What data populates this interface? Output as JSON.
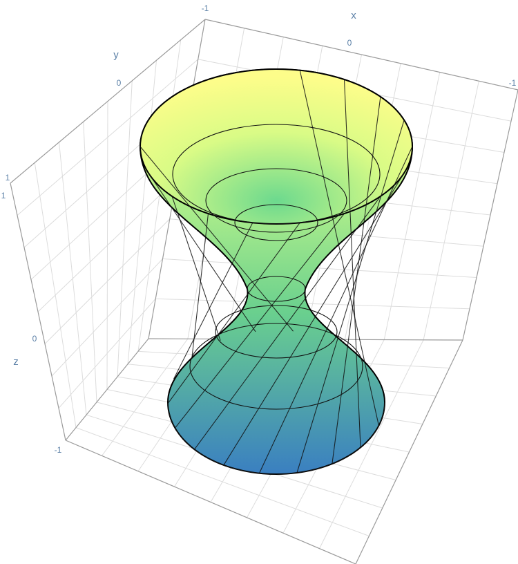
{
  "chart_data": {
    "type": "surface3d",
    "surface": "hyperboloid of one sheet",
    "equation_params": {
      "a": 0.25,
      "c": 0.2
    },
    "domain": {
      "u": [
        0,
        6.2832
      ],
      "v": [
        -2.2,
        2.2
      ]
    },
    "colorscale": [
      "#3b7fc4",
      "#5fcf8d",
      "#fdfd8c"
    ],
    "axes": {
      "x": {
        "title": "x",
        "ticks": [
          "-1",
          "0",
          "-1"
        ]
      },
      "y": {
        "title": "y",
        "ticks": [
          "0",
          "1"
        ]
      },
      "z": {
        "title": "z",
        "ticks": [
          "1",
          "0",
          "-1"
        ]
      }
    },
    "grid": true
  }
}
